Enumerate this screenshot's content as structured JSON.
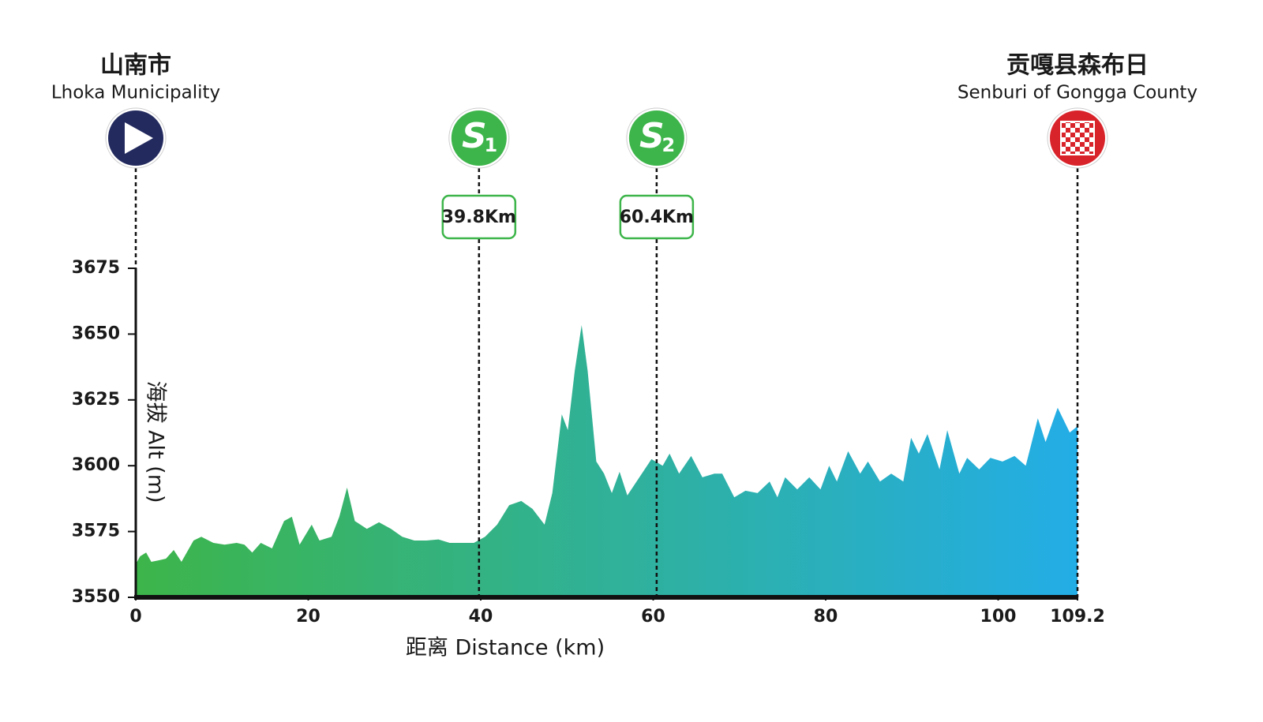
{
  "chart_data": {
    "type": "area",
    "x_label": "距离 Distance (km)",
    "y_label": "海拔 Alt (m)",
    "xlim": [
      0,
      109.2
    ],
    "xticks": [
      0,
      20,
      40,
      60,
      80,
      100,
      109.2
    ],
    "ylim": [
      3550,
      3675
    ],
    "yticks": [
      3550,
      3575,
      3600,
      3625,
      3650,
      3675
    ],
    "gradient": [
      "#3db54a",
      "#23ade6"
    ],
    "x": [
      0,
      0.5,
      1.2,
      1.8,
      2.6,
      3.5,
      4.4,
      5.3,
      6.7,
      7.6,
      9,
      10.3,
      11.7,
      12.6,
      13.5,
      14.5,
      15.8,
      17.2,
      18.1,
      19,
      20.4,
      21.3,
      22.7,
      23.6,
      24.5,
      25.4,
      26.8,
      28.2,
      29.6,
      30.9,
      32.3,
      33.7,
      35.1,
      36.4,
      37.8,
      39.2,
      40.5,
      41.9,
      43.3,
      44.7,
      46,
      47.4,
      48.3,
      49.4,
      50.1,
      50.9,
      51.7,
      52.4,
      53.4,
      54.3,
      55.2,
      56.1,
      57,
      58.4,
      59.8,
      61.1,
      61.9,
      63,
      64.4,
      65.7,
      67.1,
      68,
      69.4,
      70.7,
      72.1,
      73.5,
      74.4,
      75.3,
      76.7,
      78.1,
      79.4,
      80.4,
      81.3,
      82.6,
      84,
      84.9,
      86.3,
      87.6,
      89,
      89.9,
      90.8,
      91.8,
      93.2,
      94.1,
      95.5,
      96.4,
      97.8,
      99.1,
      100.5,
      101.9,
      103.2,
      104.6,
      105.5,
      106.9,
      108.3,
      109.2
    ],
    "values": [
      3562.6,
      3565.6,
      3567,
      3563.5,
      3564,
      3564.7,
      3568,
      3563.5,
      3571.6,
      3573,
      3570.7,
      3570,
      3570.7,
      3570,
      3567,
      3570.7,
      3568.6,
      3579,
      3580.6,
      3570,
      3577.6,
      3571.6,
      3573,
      3580.6,
      3591.7,
      3579,
      3576,
      3578.5,
      3576,
      3573,
      3571.6,
      3571.6,
      3572,
      3570.7,
      3570.7,
      3570.7,
      3573,
      3577.6,
      3585,
      3586.6,
      3583.6,
      3577.6,
      3589.6,
      3619.5,
      3613.5,
      3636,
      3653.4,
      3636,
      3601.6,
      3597,
      3589.6,
      3597.7,
      3588.7,
      3595.6,
      3602.5,
      3600,
      3604.6,
      3597,
      3603.7,
      3595.6,
      3597,
      3597,
      3588,
      3590.5,
      3589.6,
      3594,
      3588,
      3595.6,
      3591,
      3595.6,
      3591,
      3600,
      3594,
      3605.5,
      3597,
      3601.6,
      3594,
      3597,
      3594,
      3610.6,
      3604.6,
      3612,
      3598.6,
      3613.5,
      3597,
      3603,
      3598.6,
      3603,
      3601.6,
      3603.7,
      3600,
      3618,
      3609,
      3622,
      3612.6,
      3615
    ],
    "start": {
      "km": 0,
      "name_zh": "山南市",
      "name_en": "Lhoka Municipality",
      "color": "#232a5e"
    },
    "finish": {
      "km": 109.2,
      "name_zh": "贡嘎县森布日",
      "name_en": "Senburi of Gongga County",
      "color": "#d9232a"
    },
    "sprints": [
      {
        "km": 39.8,
        "icon": "S",
        "number": "1",
        "label": "39.8Km",
        "color": "#3db54a"
      },
      {
        "km": 60.4,
        "icon": "S",
        "number": "2",
        "label": "60.4Km",
        "color": "#3db54a"
      }
    ]
  }
}
